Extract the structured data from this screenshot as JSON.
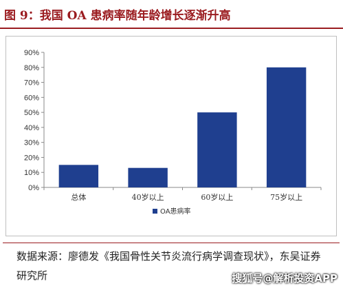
{
  "header": {
    "title": "图 9：我国 OA 患病率随年龄增长逐渐升高"
  },
  "chart_data": {
    "type": "bar",
    "categories": [
      "总体",
      "40岁以上",
      "60岁以上",
      "75岁以上"
    ],
    "series": [
      {
        "name": "OA患病率",
        "values": [
          15,
          13,
          50,
          80
        ],
        "color": "#1f3f8f"
      }
    ],
    "title": "",
    "xlabel": "",
    "ylabel": "",
    "ylim": [
      0,
      90
    ],
    "yticks": [
      "0%",
      "10%",
      "20%",
      "30%",
      "40%",
      "50%",
      "60%",
      "70%",
      "80%",
      "90%"
    ],
    "grid": false,
    "legend": "bottom-center"
  },
  "footer": {
    "source": "数据来源：廖德发《我国骨性关节炎流行病学调查现状》，东吴证券研究所",
    "watermark": "搜狐号@解析投资APP"
  }
}
